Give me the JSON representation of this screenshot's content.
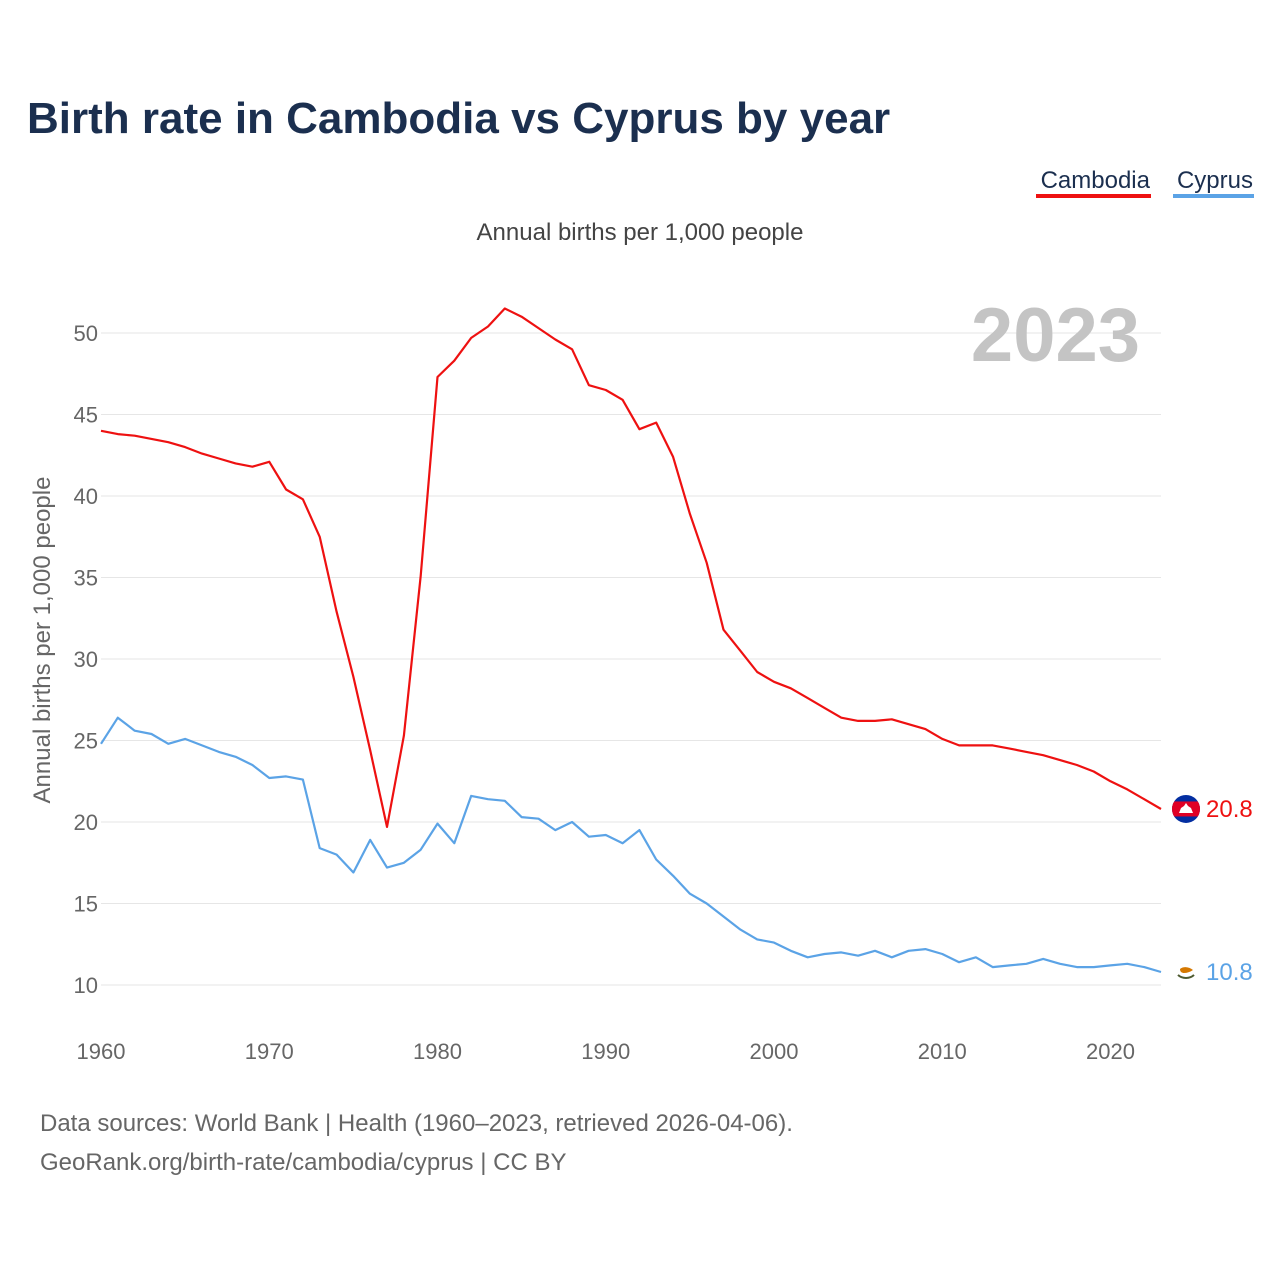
{
  "title": "Birth rate in Cambodia vs Cyprus by year",
  "legend": [
    {
      "label": "Cambodia",
      "color": "#ee1111"
    },
    {
      "label": "Cyprus",
      "color": "#5ba3e6"
    }
  ],
  "year_label": "2023",
  "source_lines": [
    "Data sources: World Bank | Health (1960–2023, retrieved 2026-04-06).",
    "GeoRank.org/birth-rate/cambodia/cyprus | CC BY"
  ],
  "chart_data": {
    "type": "line",
    "title": "Birth rate in Cambodia vs Cyprus by year",
    "subtitle": "Annual births per 1,000 people",
    "xlabel": "",
    "ylabel": "Annual births per 1,000 people",
    "xlim": [
      1960,
      2023
    ],
    "ylim": [
      10,
      52
    ],
    "x_ticks": [
      1960,
      1970,
      1980,
      1990,
      2000,
      2010,
      2020
    ],
    "y_ticks": [
      10,
      15,
      20,
      25,
      30,
      35,
      40,
      45,
      50
    ],
    "grid": true,
    "legend_position": "top-right",
    "x": [
      1960,
      1961,
      1962,
      1963,
      1964,
      1965,
      1966,
      1967,
      1968,
      1969,
      1970,
      1971,
      1972,
      1973,
      1974,
      1975,
      1976,
      1977,
      1978,
      1979,
      1980,
      1981,
      1982,
      1983,
      1984,
      1985,
      1986,
      1987,
      1988,
      1989,
      1990,
      1991,
      1992,
      1993,
      1994,
      1995,
      1996,
      1997,
      1998,
      1999,
      2000,
      2001,
      2002,
      2003,
      2004,
      2005,
      2006,
      2007,
      2008,
      2009,
      2010,
      2011,
      2012,
      2013,
      2014,
      2015,
      2016,
      2017,
      2018,
      2019,
      2020,
      2021,
      2022,
      2023
    ],
    "series": [
      {
        "name": "Cambodia",
        "color": "#ee1111",
        "end_label": "20.8",
        "values": [
          44.0,
          43.8,
          43.7,
          43.5,
          43.3,
          43.0,
          42.6,
          42.3,
          42.0,
          41.8,
          42.1,
          40.4,
          39.8,
          37.5,
          32.9,
          28.9,
          24.4,
          19.7,
          25.3,
          35.1,
          47.3,
          48.3,
          49.7,
          50.4,
          51.5,
          51.0,
          50.3,
          49.6,
          49.0,
          46.8,
          46.5,
          45.9,
          44.1,
          44.5,
          42.4,
          38.9,
          35.9,
          31.8,
          30.5,
          29.2,
          28.6,
          28.2,
          27.6,
          27.0,
          26.4,
          26.2,
          26.2,
          26.3,
          26.0,
          25.7,
          25.1,
          24.7,
          24.7,
          24.7,
          24.5,
          24.3,
          24.1,
          23.8,
          23.5,
          23.1,
          22.5,
          22.0,
          21.4,
          20.8
        ]
      },
      {
        "name": "Cyprus",
        "color": "#5ba3e6",
        "end_label": "10.8",
        "values": [
          24.8,
          26.4,
          25.6,
          25.4,
          24.8,
          25.1,
          24.7,
          24.3,
          24.0,
          23.5,
          22.7,
          22.8,
          22.6,
          18.4,
          18.0,
          16.9,
          18.9,
          17.2,
          17.5,
          18.3,
          19.9,
          18.7,
          21.6,
          21.4,
          21.3,
          20.3,
          20.2,
          19.5,
          20.0,
          19.1,
          19.2,
          18.7,
          19.5,
          17.7,
          16.7,
          15.6,
          15.0,
          14.2,
          13.4,
          12.8,
          12.6,
          12.1,
          11.7,
          11.9,
          12.0,
          11.8,
          12.1,
          11.7,
          12.1,
          12.2,
          11.9,
          11.4,
          11.7,
          11.1,
          11.2,
          11.3,
          11.6,
          11.3,
          11.1,
          11.1,
          11.2,
          11.3,
          11.1,
          10.8
        ]
      }
    ]
  }
}
